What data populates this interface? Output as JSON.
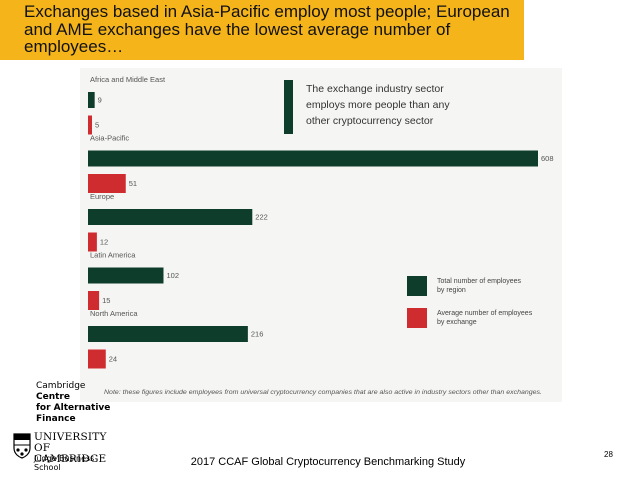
{
  "slide": {
    "title": "Exchanges based in Asia-Pacific employ most people; European and AME exchanges have the lowest average number of employees…",
    "footer": "2017 CCAF Global Cryptocurrency Benchmarking Study",
    "page_number": "28"
  },
  "logos": {
    "ccaf": [
      "Cambridge",
      "Centre",
      "for Alternative",
      "Finance"
    ],
    "university_name": [
      "UNIVERSITY OF",
      "CAMBRIDGE"
    ],
    "university_sub": "Judge Business School"
  },
  "colors": {
    "title_bar": "#f4b41a",
    "total_series": "#0e3d2c",
    "average_series": "#cf2c30"
  },
  "chart_data": {
    "type": "bar",
    "orientation": "horizontal",
    "categories": [
      "Africa and Middle East",
      "Asia-Pacific",
      "Europe",
      "Latin America",
      "North America"
    ],
    "series": [
      {
        "name": "Total number of employees by region",
        "values": [
          9,
          608,
          222,
          102,
          216
        ],
        "color": "#0e3d2c"
      },
      {
        "name": "Average number of employees by exchange",
        "values": [
          5,
          51,
          12,
          15,
          24
        ],
        "color": "#cf2c30"
      }
    ],
    "xlim": [
      0,
      608
    ],
    "grid": false,
    "callout": "The exchange industry sector employs more people than any other cryptocurrency sector",
    "note": "Note: these figures include employees from universal cryptocurrency companies that are also active in industry sectors other than exchanges."
  }
}
